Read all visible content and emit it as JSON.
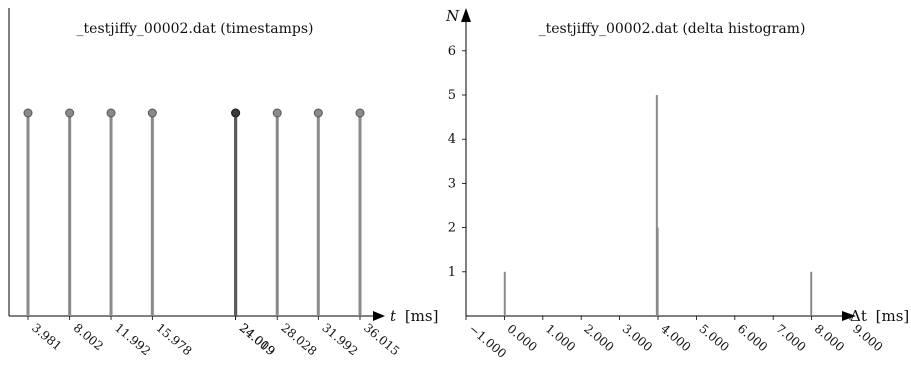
{
  "chart_data": [
    {
      "type": "scatter",
      "title": "_testjiffy_00002.dat (timestamps)",
      "xlabel_var": "t",
      "xlabel_unit": "[ms]",
      "ylabel": "",
      "events_ms": [
        3.981,
        8.002,
        11.992,
        15.978,
        24.009,
        24.019,
        28.028,
        31.992,
        36.015
      ],
      "tick_labels": [
        "3.981",
        "8.002",
        "11.992",
        "15.978",
        "24.009",
        "24.019",
        "28.028",
        "31.992",
        "36.015"
      ],
      "grid": false
    },
    {
      "type": "bar",
      "title": "_testjiffy_00002.dat (delta histogram)",
      "xlabel_var": "Δt",
      "xlabel_unit": "[ms]",
      "ylabel": "N",
      "x": [
        0.01,
        3.97,
        3.99,
        7.99
      ],
      "values": [
        1,
        5,
        2,
        1
      ],
      "xlim": [
        -1.0,
        9.0
      ],
      "ylim": [
        0,
        7
      ],
      "xticks": [
        "−1.000",
        "0.000",
        "1.000",
        "2.000",
        "3.000",
        "4.000",
        "5.000",
        "6.000",
        "7.000",
        "8.000",
        "9.000"
      ],
      "yticks": [
        "1",
        "2",
        "3",
        "4",
        "5",
        "6"
      ],
      "grid": false
    }
  ]
}
